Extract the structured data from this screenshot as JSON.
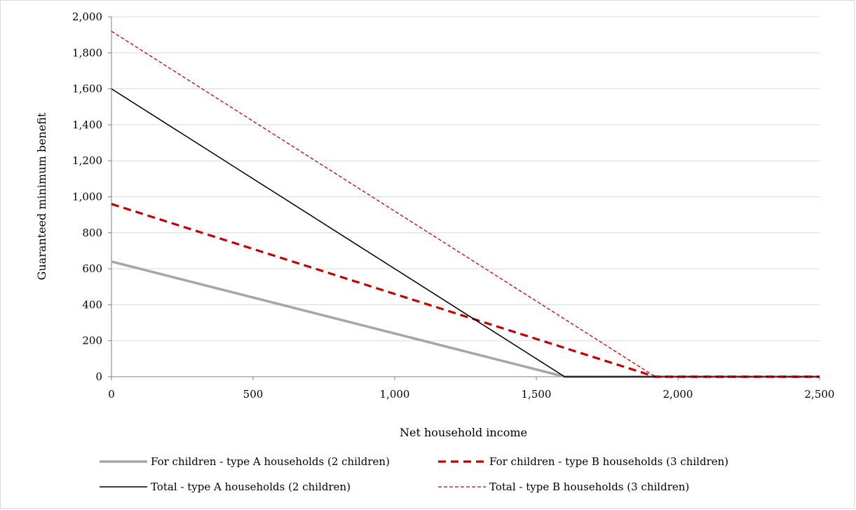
{
  "chart_data": {
    "type": "line",
    "xlabel": "Net household income",
    "ylabel": "Guaranteed minimum benefit",
    "xlim": [
      0,
      2500
    ],
    "ylim": [
      0,
      2000
    ],
    "x_ticks": [
      0,
      500,
      1000,
      1500,
      2000,
      2500
    ],
    "x_tick_labels": [
      "0",
      "500",
      "1,000",
      "1,500",
      "2,000",
      "2,500"
    ],
    "y_ticks": [
      0,
      200,
      400,
      600,
      800,
      1000,
      1200,
      1400,
      1600,
      1800,
      2000
    ],
    "y_tick_labels": [
      "0",
      "200",
      "400",
      "600",
      "800",
      "1,000",
      "1,200",
      "1,400",
      "1,600",
      "1,800",
      "2,000"
    ],
    "grid": "horizontal",
    "legend_position": "bottom",
    "series": [
      {
        "name": "For children - type A households (2 children)",
        "color": "#a6a6a6",
        "style": "solid-thick",
        "points": [
          [
            0,
            640
          ],
          [
            1600,
            0
          ],
          [
            2500,
            0
          ]
        ]
      },
      {
        "name": "For children - type B households (3 children)",
        "color": "#c00000",
        "style": "dashed-thick",
        "points": [
          [
            0,
            960
          ],
          [
            1920,
            0
          ],
          [
            2500,
            0
          ]
        ]
      },
      {
        "name": "Total - type A households (2 children)",
        "color": "#000000",
        "style": "solid-thin",
        "points": [
          [
            0,
            1600
          ],
          [
            1600,
            0
          ],
          [
            2500,
            0
          ]
        ]
      },
      {
        "name": "Total - type B households (3 children)",
        "color": "#c00000",
        "style": "dashed-thin",
        "points": [
          [
            0,
            1920
          ],
          [
            1920,
            0
          ],
          [
            2500,
            0
          ]
        ]
      }
    ]
  }
}
